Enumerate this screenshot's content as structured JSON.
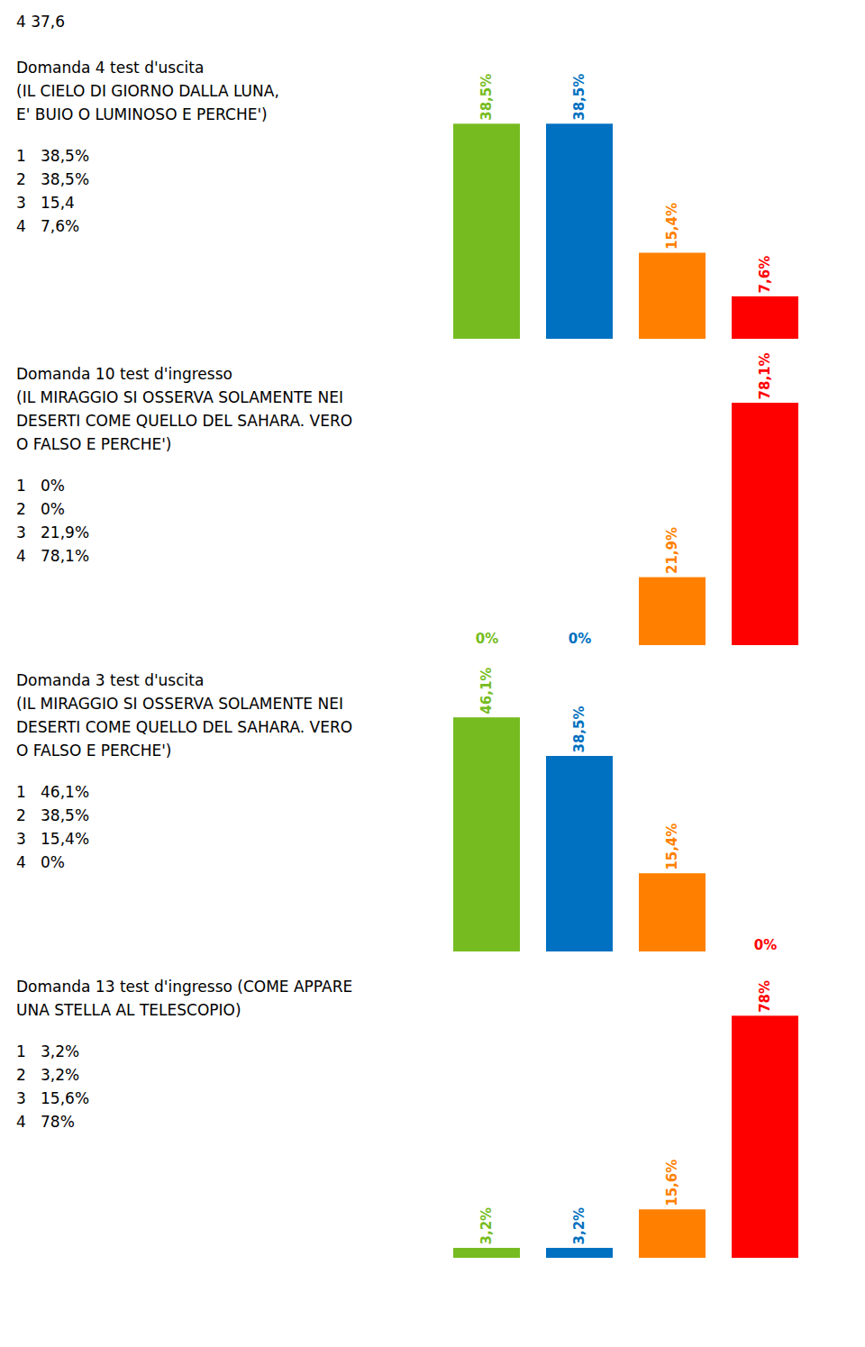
{
  "title": "4  37,6",
  "chart_data": [
    {
      "type": "bar",
      "title": "Domanda 4 test d'uscita\n(IL CIELO DI GIORNO DALLA LUNA,\nE' BUIO O LUMINOSO E PERCHE')",
      "annotations": [
        "1   38,5%",
        "2   38,5%",
        "3   15,4",
        "4   7,6%"
      ],
      "categories": [
        null,
        null,
        null,
        null
      ],
      "values": [
        38.5,
        38.5,
        15.4,
        7.6
      ],
      "value_labels": [
        "38,5%",
        "38,5%",
        "15,4%",
        "7,6%"
      ],
      "colors": [
        "#76BC21",
        "#0070C0",
        "#FF8000",
        "#FF0000"
      ],
      "ylim": [
        0,
        50
      ],
      "data_labels": true,
      "tick_labels": false
    },
    {
      "type": "bar",
      "title": "Domanda 10 test d'ingresso\n(IL MIRAGGIO SI OSSERVA SOLAMENTE NEI\nDESERTI COME QUELLO DEL SAHARA. VERO\nO FALSO E PERCHE')",
      "annotations": [
        "1   0%",
        "2   0%",
        "3   21,9%",
        "4   78,1%"
      ],
      "categories": [
        null,
        null,
        null,
        null
      ],
      "values": [
        0.0,
        0.0,
        21.9,
        78.1
      ],
      "value_labels": [
        "0%",
        "0%",
        "21,9%",
        "78,1%"
      ],
      "colors": [
        "#76BC21",
        "#0070C0",
        "#FF8000",
        "#FF0000"
      ],
      "ylim": [
        0,
        90
      ],
      "data_labels": true,
      "tick_labels": false
    },
    {
      "type": "bar",
      "title": "Domanda 3 test d'uscita\n(IL MIRAGGIO SI OSSERVA SOLAMENTE NEI\nDESERTI COME QUELLO DEL SAHARA. VERO\nO FALSO E PERCHE')",
      "annotations": [
        "1   46,1%",
        "2   38,5%",
        "3   15,4%",
        "4   0%"
      ],
      "categories": [
        null,
        null,
        null,
        null
      ],
      "values": [
        46.1,
        38.5,
        15.4,
        0.0
      ],
      "value_labels": [
        "46,1%",
        "38,5%",
        "15,4%",
        "0%"
      ],
      "colors": [
        "#76BC21",
        "#0070C0",
        "#FF8000",
        "#FF0000"
      ],
      "ylim": [
        0,
        55
      ],
      "data_labels": true,
      "tick_labels": false
    },
    {
      "type": "bar",
      "title": "Domanda 13 test d'ingresso (COME APPARE\nUNA STELLA AL TELESCOPIO)",
      "annotations": [
        "1   3,2%",
        "2   3,2%",
        "3   15,6%",
        "4   78%"
      ],
      "categories": [
        null,
        null,
        null,
        null
      ],
      "values": [
        3.2,
        3.2,
        15.6,
        78.0
      ],
      "value_labels": [
        "3,2%",
        "3,2%",
        "15,6%",
        "78%"
      ],
      "colors": [
        "#76BC21",
        "#0070C0",
        "#FF8000",
        "#FF0000"
      ],
      "ylim": [
        0,
        90
      ],
      "data_labels": true,
      "tick_labels": false
    }
  ]
}
